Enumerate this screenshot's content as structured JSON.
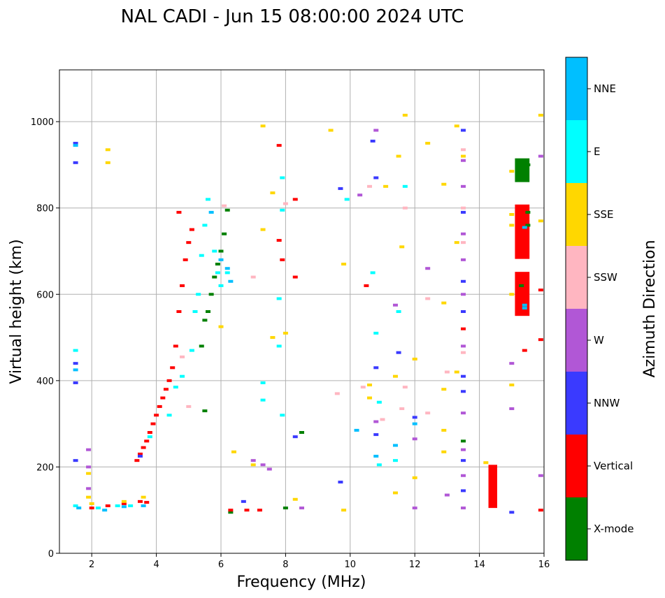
{
  "chart_data": {
    "type": "scatter",
    "title": "NAL CADI - Jun 15 08:00:00 2024 UTC",
    "xlabel": "Frequency (MHz)",
    "ylabel": "Virtual height (km)",
    "xlim": [
      1,
      16
    ],
    "ylim": [
      0,
      1120
    ],
    "xticks": [
      "2",
      "4",
      "6",
      "8",
      "10",
      "12",
      "14",
      "16"
    ],
    "xtick_values": [
      2,
      4,
      6,
      8,
      10,
      12,
      14,
      16
    ],
    "yticks": [
      "0",
      "200",
      "400",
      "600",
      "800",
      "1000"
    ],
    "ytick_values": [
      0,
      200,
      400,
      600,
      800,
      1000
    ],
    "grid": true,
    "colorbar": {
      "label": "Azimuth Direction",
      "categories": [
        {
          "name": "X-mode",
          "color": "#008000"
        },
        {
          "name": "Vertical",
          "color": "#ff0000"
        },
        {
          "name": "NNW",
          "color": "#3a3aff"
        },
        {
          "name": "W",
          "color": "#b157d6"
        },
        {
          "name": "SSW",
          "color": "#ffb6c1"
        },
        {
          "name": "SSE",
          "color": "#ffd700"
        },
        {
          "name": "E",
          "color": "#00ffff"
        },
        {
          "name": "NNE",
          "color": "#00bfff"
        }
      ]
    },
    "series": [
      {
        "name": "X-mode",
        "points": [
          [
            5.4,
            480
          ],
          [
            5.5,
            540
          ],
          [
            5.6,
            560
          ],
          [
            5.7,
            600
          ],
          [
            5.8,
            640
          ],
          [
            5.9,
            670
          ],
          [
            6.0,
            700
          ],
          [
            6.1,
            740
          ],
          [
            6.2,
            795
          ],
          [
            5.5,
            330
          ],
          [
            6.3,
            95
          ],
          [
            8.0,
            105
          ],
          [
            8.5,
            280
          ],
          [
            13.5,
            260
          ],
          [
            15.3,
            620
          ],
          [
            15.5,
            900
          ],
          [
            15.5,
            790
          ],
          [
            15.5,
            760
          ]
        ]
      },
      {
        "name": "Vertical",
        "points": [
          [
            3.4,
            215
          ],
          [
            3.5,
            230
          ],
          [
            3.6,
            245
          ],
          [
            3.7,
            260
          ],
          [
            3.8,
            280
          ],
          [
            3.9,
            300
          ],
          [
            4.0,
            320
          ],
          [
            4.1,
            340
          ],
          [
            4.2,
            360
          ],
          [
            4.3,
            380
          ],
          [
            4.4,
            400
          ],
          [
            4.5,
            430
          ],
          [
            4.6,
            480
          ],
          [
            4.7,
            560
          ],
          [
            4.8,
            620
          ],
          [
            4.9,
            680
          ],
          [
            5.0,
            720
          ],
          [
            5.1,
            750
          ],
          [
            4.7,
            790
          ],
          [
            2.0,
            105
          ],
          [
            2.5,
            110
          ],
          [
            3.0,
            115
          ],
          [
            3.5,
            120
          ],
          [
            3.7,
            118
          ],
          [
            6.3,
            100
          ],
          [
            6.8,
            100
          ],
          [
            7.2,
            100
          ],
          [
            7.8,
            945
          ],
          [
            7.8,
            725
          ],
          [
            7.9,
            680
          ],
          [
            8.3,
            820
          ],
          [
            8.3,
            640
          ],
          [
            10.5,
            620
          ],
          [
            13.5,
            520
          ],
          [
            14.4,
            190
          ],
          [
            14.4,
            150
          ],
          [
            14.4,
            110
          ],
          [
            15.4,
            600
          ],
          [
            15.4,
            580
          ],
          [
            15.4,
            560
          ],
          [
            15.4,
            640
          ],
          [
            15.4,
            700
          ],
          [
            15.4,
            740
          ],
          [
            15.4,
            800
          ],
          [
            15.4,
            470
          ],
          [
            15.9,
            610
          ],
          [
            15.9,
            495
          ],
          [
            15.9,
            100
          ]
        ]
      },
      {
        "name": "NNW",
        "points": [
          [
            1.5,
            950
          ],
          [
            1.5,
            905
          ],
          [
            1.5,
            440
          ],
          [
            1.5,
            395
          ],
          [
            1.5,
            215
          ],
          [
            3.5,
            225
          ],
          [
            6.7,
            120
          ],
          [
            8.3,
            270
          ],
          [
            9.7,
            845
          ],
          [
            9.7,
            165
          ],
          [
            10.7,
            955
          ],
          [
            10.8,
            870
          ],
          [
            10.8,
            430
          ],
          [
            10.8,
            275
          ],
          [
            11.5,
            465
          ],
          [
            12.0,
            315
          ],
          [
            13.5,
            980
          ],
          [
            13.5,
            790
          ],
          [
            13.5,
            630
          ],
          [
            13.5,
            560
          ],
          [
            13.5,
            410
          ],
          [
            13.5,
            375
          ],
          [
            13.5,
            215
          ],
          [
            13.5,
            145
          ],
          [
            15.0,
            95
          ]
        ]
      },
      {
        "name": "W",
        "points": [
          [
            1.9,
            240
          ],
          [
            1.9,
            200
          ],
          [
            1.9,
            150
          ],
          [
            7.0,
            215
          ],
          [
            7.3,
            205
          ],
          [
            7.5,
            195
          ],
          [
            8.5,
            105
          ],
          [
            10.3,
            830
          ],
          [
            10.8,
            980
          ],
          [
            10.8,
            305
          ],
          [
            11.4,
            575
          ],
          [
            12.0,
            265
          ],
          [
            12.0,
            105
          ],
          [
            12.4,
            660
          ],
          [
            13.0,
            135
          ],
          [
            13.5,
            910
          ],
          [
            13.5,
            850
          ],
          [
            13.5,
            740
          ],
          [
            13.5,
            680
          ],
          [
            13.5,
            600
          ],
          [
            13.5,
            480
          ],
          [
            13.5,
            325
          ],
          [
            13.5,
            240
          ],
          [
            13.5,
            180
          ],
          [
            13.5,
            105
          ],
          [
            15.0,
            440
          ],
          [
            15.0,
            335
          ],
          [
            15.9,
            920
          ],
          [
            15.9,
            180
          ]
        ]
      },
      {
        "name": "SSW",
        "points": [
          [
            4.8,
            455
          ],
          [
            5.0,
            340
          ],
          [
            6.1,
            805
          ],
          [
            7.0,
            640
          ],
          [
            8.0,
            810
          ],
          [
            9.6,
            370
          ],
          [
            10.4,
            385
          ],
          [
            10.6,
            850
          ],
          [
            11.0,
            310
          ],
          [
            11.6,
            335
          ],
          [
            11.7,
            800
          ],
          [
            11.7,
            385
          ],
          [
            12.0,
            450
          ],
          [
            12.4,
            590
          ],
          [
            12.4,
            325
          ],
          [
            13.0,
            420
          ],
          [
            13.5,
            935
          ],
          [
            13.5,
            800
          ],
          [
            13.5,
            720
          ],
          [
            13.5,
            465
          ]
        ]
      },
      {
        "name": "SSE",
        "points": [
          [
            1.9,
            185
          ],
          [
            1.9,
            130
          ],
          [
            2.0,
            115
          ],
          [
            2.5,
            935
          ],
          [
            2.5,
            905
          ],
          [
            3.0,
            120
          ],
          [
            3.6,
            130
          ],
          [
            6.0,
            525
          ],
          [
            6.4,
            235
          ],
          [
            7.0,
            205
          ],
          [
            7.3,
            990
          ],
          [
            7.3,
            750
          ],
          [
            7.6,
            835
          ],
          [
            7.6,
            500
          ],
          [
            8.0,
            510
          ],
          [
            8.3,
            125
          ],
          [
            9.4,
            980
          ],
          [
            9.8,
            670
          ],
          [
            9.8,
            100
          ],
          [
            10.6,
            390
          ],
          [
            10.6,
            360
          ],
          [
            11.1,
            850
          ],
          [
            11.4,
            410
          ],
          [
            11.4,
            140
          ],
          [
            11.5,
            920
          ],
          [
            11.6,
            710
          ],
          [
            11.7,
            1015
          ],
          [
            12.0,
            450
          ],
          [
            12.0,
            175
          ],
          [
            12.4,
            950
          ],
          [
            12.9,
            580
          ],
          [
            12.9,
            380
          ],
          [
            12.9,
            285
          ],
          [
            12.9,
            235
          ],
          [
            12.9,
            855
          ],
          [
            13.3,
            990
          ],
          [
            13.3,
            720
          ],
          [
            13.3,
            420
          ],
          [
            13.5,
            920
          ],
          [
            14.2,
            210
          ],
          [
            15.0,
            885
          ],
          [
            15.0,
            785
          ],
          [
            15.0,
            760
          ],
          [
            15.0,
            600
          ],
          [
            15.0,
            390
          ],
          [
            15.9,
            1015
          ],
          [
            15.9,
            770
          ]
        ]
      },
      {
        "name": "E",
        "points": [
          [
            1.5,
            470
          ],
          [
            1.5,
            110
          ],
          [
            2.2,
            105
          ],
          [
            2.8,
            110
          ],
          [
            3.2,
            110
          ],
          [
            3.8,
            270
          ],
          [
            4.4,
            320
          ],
          [
            4.6,
            385
          ],
          [
            4.8,
            410
          ],
          [
            5.1,
            470
          ],
          [
            5.2,
            560
          ],
          [
            5.3,
            600
          ],
          [
            5.4,
            690
          ],
          [
            5.5,
            760
          ],
          [
            5.6,
            820
          ],
          [
            5.8,
            700
          ],
          [
            5.9,
            650
          ],
          [
            6.0,
            620
          ],
          [
            6.2,
            650
          ],
          [
            7.3,
            395
          ],
          [
            7.3,
            355
          ],
          [
            7.8,
            590
          ],
          [
            7.8,
            480
          ],
          [
            7.9,
            320
          ],
          [
            7.9,
            870
          ],
          [
            7.9,
            795
          ],
          [
            9.9,
            820
          ],
          [
            10.7,
            650
          ],
          [
            10.8,
            510
          ],
          [
            10.9,
            350
          ],
          [
            10.9,
            205
          ],
          [
            11.4,
            215
          ],
          [
            11.5,
            560
          ],
          [
            11.7,
            850
          ]
        ]
      },
      {
        "name": "NNE",
        "points": [
          [
            1.5,
            945
          ],
          [
            1.5,
            425
          ],
          [
            1.6,
            105
          ],
          [
            2.4,
            100
          ],
          [
            3.0,
            108
          ],
          [
            3.6,
            110
          ],
          [
            5.7,
            790
          ],
          [
            6.0,
            680
          ],
          [
            6.2,
            660
          ],
          [
            6.3,
            630
          ],
          [
            10.2,
            285
          ],
          [
            10.8,
            225
          ],
          [
            11.4,
            250
          ],
          [
            12.0,
            300
          ],
          [
            15.4,
            755
          ],
          [
            15.4,
            575
          ],
          [
            15.4,
            568
          ]
        ]
      }
    ],
    "rect_blocks": [
      {
        "series": "X-mode",
        "x0": 15.1,
        "x1": 15.55,
        "y0": 860,
        "y1": 915
      },
      {
        "series": "Vertical",
        "x0": 15.1,
        "x1": 15.55,
        "y0": 682,
        "y1": 808
      },
      {
        "series": "Vertical",
        "x0": 15.1,
        "x1": 15.55,
        "y0": 550,
        "y1": 652
      },
      {
        "series": "Vertical",
        "x0": 14.28,
        "x1": 14.55,
        "y0": 105,
        "y1": 205
      }
    ]
  }
}
